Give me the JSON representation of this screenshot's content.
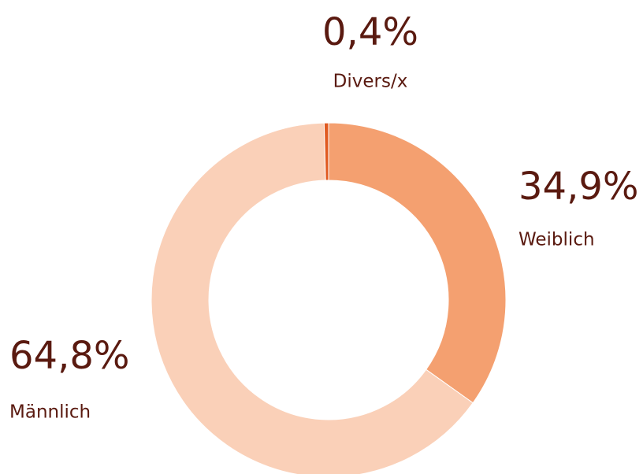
{
  "chart_data": {
    "type": "donut",
    "categories": [
      "Weiblich",
      "Männlich",
      "Divers/x"
    ],
    "values": [
      34.9,
      64.8,
      0.4
    ],
    "value_labels": [
      "34,9%",
      "64,8%",
      "0,4%"
    ],
    "colors": [
      "#f4a070",
      "#fad0b8",
      "#e05a20"
    ]
  }
}
